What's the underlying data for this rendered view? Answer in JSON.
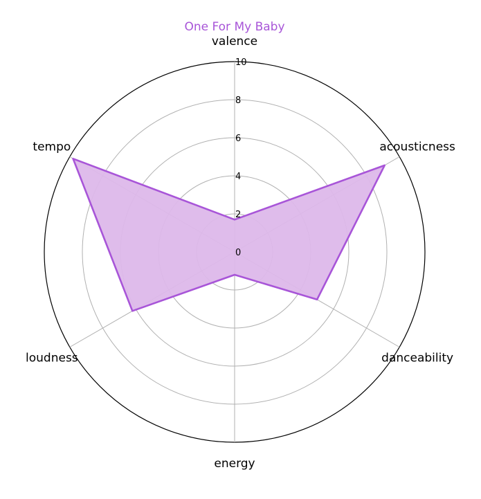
{
  "chart_data": {
    "type": "radar",
    "title": "One For My Baby",
    "axes": [
      "valence",
      "acousticness",
      "danceability",
      "energy",
      "loudness",
      "tempo"
    ],
    "series": [
      {
        "values": [
          1.7,
          9.1,
          5.0,
          1.2,
          6.2,
          9.8
        ]
      }
    ],
    "rlim": [
      0,
      10
    ],
    "r_ticks": [
      "0",
      "2",
      "4",
      "6",
      "8",
      "10"
    ],
    "grid": true,
    "colors": {
      "series": "#a855d8",
      "fill": "#ddb8ea",
      "title": "#a855d8",
      "grid": "#b0b0b0",
      "outer": "#000000"
    }
  }
}
